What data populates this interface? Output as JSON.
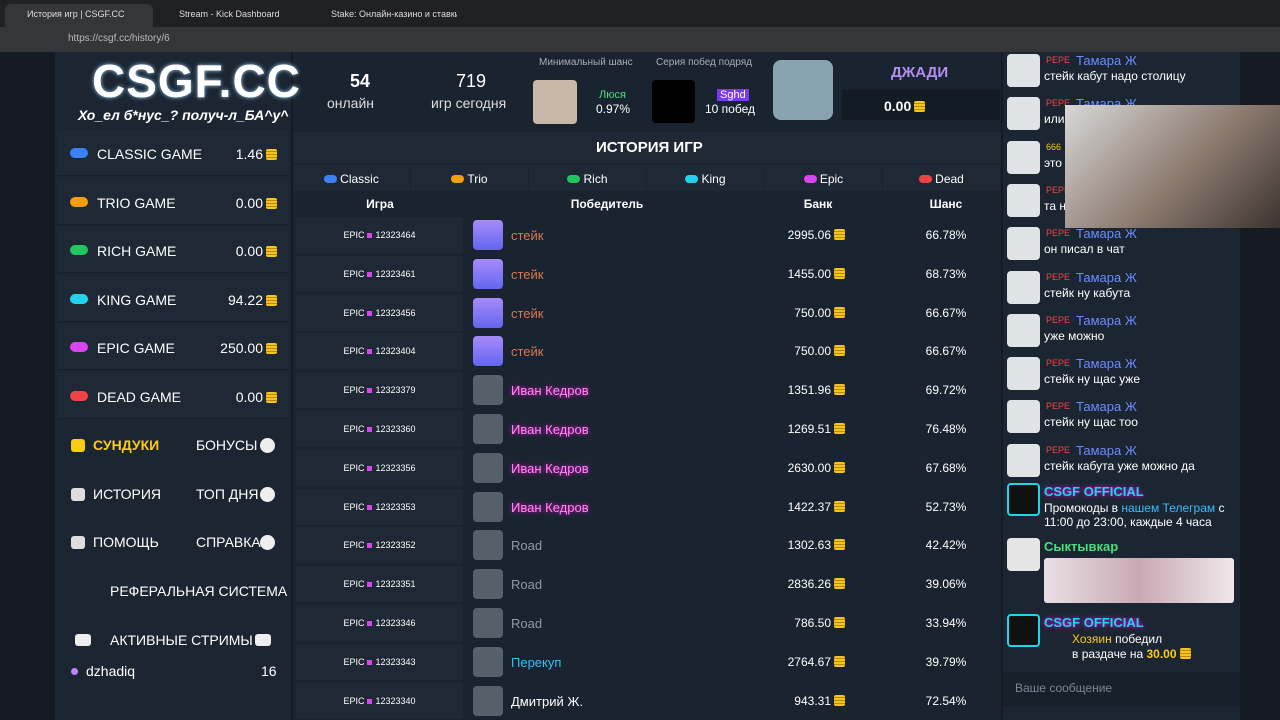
{
  "browser": {
    "tabs": [
      "История игр | CSGF.CC",
      "Stream - Kick Dashboard",
      "Stake: Онлайн-казино и ставки н"
    ],
    "url": "https://csgf.cc/history/6"
  },
  "header": {
    "logo": "CSGF.CC",
    "slogan": "Хо_ел б*нус_? получ-л_БА^у^",
    "online_count": "54",
    "online_label": "онлайн",
    "games_count": "719",
    "games_label": "игр сегодня",
    "min_chance_label": "Минимальный шанс",
    "min_chance_user": "Люся",
    "min_chance_value": "0.97%",
    "streak_label": "Серия побед подряд",
    "streak_user": "Sghd",
    "streak_value": "10 побед",
    "user_name": "ДЖАДИ",
    "balance": "0.00"
  },
  "sidebar": {
    "games": [
      {
        "name": "CLASSIC GAME",
        "value": "1.46",
        "color": "#3b82f6"
      },
      {
        "name": "TRIO GAME",
        "value": "0.00",
        "color": "#f59e0b"
      },
      {
        "name": "RICH GAME",
        "value": "0.00",
        "color": "#22c55e"
      },
      {
        "name": "KING GAME",
        "value": "94.22",
        "color": "#22d3ee"
      },
      {
        "name": "EPIC GAME",
        "value": "250.00",
        "color": "#d946ef"
      },
      {
        "name": "DEAD GAME",
        "value": "0.00",
        "color": "#ef4444"
      }
    ],
    "menu": [
      [
        "СУНДУКИ",
        "БОНУСЫ"
      ],
      [
        "ИСТОРИЯ",
        "ТОП ДНЯ"
      ],
      [
        "ПОМОЩЬ",
        "СПРАВКА"
      ]
    ],
    "referral": "РЕФЕРАЛЬНАЯ СИСТЕМА",
    "streams_title": "АКТИВНЫЕ СТРИМЫ",
    "stream": {
      "name": "dzhadiq",
      "count": "16"
    }
  },
  "history": {
    "title": "ИСТОРИЯ ИГР",
    "tabs": [
      {
        "name": "Classic",
        "color": "#3b82f6"
      },
      {
        "name": "Trio",
        "color": "#f59e0b"
      },
      {
        "name": "Rich",
        "color": "#22c55e"
      },
      {
        "name": "King",
        "color": "#22d3ee"
      },
      {
        "name": "Epic",
        "color": "#d946ef"
      },
      {
        "name": "Dead",
        "color": "#ef4444"
      }
    ],
    "columns": [
      "Игра",
      "Победитель",
      "Банк",
      "Шанс"
    ],
    "rows": [
      {
        "mode": "EPIC",
        "id": "12323464",
        "winner": "стейк",
        "color": "#d9774f",
        "bank": "2995.06",
        "chance": "66.78%"
      },
      {
        "mode": "EPIC",
        "id": "12323461",
        "winner": "стейк",
        "color": "#d9774f",
        "bank": "1455.00",
        "chance": "68.73%"
      },
      {
        "mode": "EPIC",
        "id": "12323456",
        "winner": "стейк",
        "color": "#d9774f",
        "bank": "750.00",
        "chance": "66.67%"
      },
      {
        "mode": "EPIC",
        "id": "12323404",
        "winner": "стейк",
        "color": "#d9774f",
        "bank": "750.00",
        "chance": "66.67%"
      },
      {
        "mode": "EPIC",
        "id": "12323379",
        "winner": "Иван Кедров",
        "color": "#ff8ee0",
        "bank": "1351.96",
        "chance": "69.72%"
      },
      {
        "mode": "EPIC",
        "id": "12323360",
        "winner": "Иван Кедров",
        "color": "#ff8ee0",
        "bank": "1269.51",
        "chance": "76.48%"
      },
      {
        "mode": "EPIC",
        "id": "12323356",
        "winner": "Иван Кедров",
        "color": "#ff8ee0",
        "bank": "2630.00",
        "chance": "67.68%"
      },
      {
        "mode": "EPIC",
        "id": "12323353",
        "winner": "Иван Кедров",
        "color": "#ff8ee0",
        "bank": "1422.37",
        "chance": "52.73%"
      },
      {
        "mode": "EPIC",
        "id": "12323352",
        "winner": "Road",
        "color": "#8e99a6",
        "bank": "1302.63",
        "chance": "42.42%"
      },
      {
        "mode": "EPIC",
        "id": "12323351",
        "winner": "Road",
        "color": "#8e99a6",
        "bank": "2836.26",
        "chance": "39.06%"
      },
      {
        "mode": "EPIC",
        "id": "12323346",
        "winner": "Road",
        "color": "#8e99a6",
        "bank": "786.50",
        "chance": "33.94%"
      },
      {
        "mode": "EPIC",
        "id": "12323343",
        "winner": "Перекуп",
        "color": "#38bdf8",
        "bank": "2764.67",
        "chance": "39.79%"
      },
      {
        "mode": "EPIC",
        "id": "12323340",
        "winner": "Дмитрий Ж.",
        "color": "#ffffff",
        "bank": "943.31",
        "chance": "72.54%"
      }
    ]
  },
  "chat": {
    "messages": [
      {
        "badge": "PEPE",
        "user": "Тамара Ж",
        "text": "стейк кабут надо столицу"
      },
      {
        "badge": "PEPE",
        "user": "Тамара Ж",
        "text": "или"
      },
      {
        "badge": "666",
        "text": "это"
      },
      {
        "badge": "PEPE",
        "text": "та н"
      },
      {
        "badge": "PEPE",
        "user": "Тамара Ж",
        "text": "он писал в чат"
      },
      {
        "badge": "PEPE",
        "user": "Тамара Ж",
        "text": "стейк ну кабута"
      },
      {
        "badge": "PEPE",
        "user": "Тамара Ж",
        "text": "уже можно"
      },
      {
        "badge": "PEPE",
        "user": "Тамара Ж",
        "text": "стейк ну щас уже"
      },
      {
        "badge": "PEPE",
        "user": "Тамара Ж",
        "text": "стейк ну щас тоо"
      },
      {
        "badge": "PEPE",
        "user": "Тамара Ж",
        "text": "стейк кабута уже можно да"
      }
    ],
    "official1": {
      "user": "CSGF OFFICIAL",
      "text1": "Промокоды в ",
      "link": "нашем Телеграм",
      "text2": " с 11:00 до 23:00, каждые 4 часа"
    },
    "cat_user": "Сыктывкар",
    "official2": {
      "user": "CSGF OFFICIAL",
      "name": "Хозяин",
      "text1": " победил",
      "text2": "в раздаче на ",
      "amount": "30.00"
    },
    "placeholder": "Ваше сообщение"
  }
}
